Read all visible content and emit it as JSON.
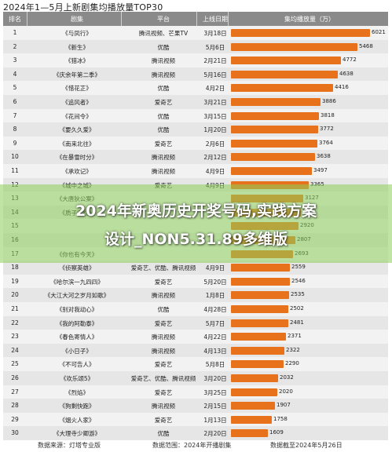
{
  "title": "2024年1—5月上新剧集均播放量TOP30",
  "header": {
    "rank": "排名",
    "name": "剧集",
    "platform": "平台",
    "date": "上线日期",
    "metric": "集均播放量（万）"
  },
  "chart_data": {
    "type": "bar",
    "orientation": "horizontal",
    "unit": "万",
    "xlim": [
      0,
      6200
    ],
    "rows": [
      {
        "rank": "1",
        "name": "《与凤行》",
        "platform": "腾讯视频、芒果TV",
        "date": "3月18日",
        "value": 6021
      },
      {
        "rank": "2",
        "name": "《新生》",
        "platform": "优酷",
        "date": "5月6日",
        "value": 5468
      },
      {
        "rank": "3",
        "name": "《猎冰》",
        "platform": "腾讯视频",
        "date": "2月21日",
        "value": 4772
      },
      {
        "rank": "4",
        "name": "《庆余年第二季》",
        "platform": "腾讯视频",
        "date": "5月16日",
        "value": 4638
      },
      {
        "rank": "5",
        "name": "《惜花芷》",
        "platform": "优酷",
        "date": "4月2日",
        "value": 4416
      },
      {
        "rank": "6",
        "name": "《追风者》",
        "platform": "爱奇艺",
        "date": "3月21日",
        "value": 3886
      },
      {
        "rank": "7",
        "name": "《花间令》",
        "platform": "优酷",
        "date": "3月15日",
        "value": 3818
      },
      {
        "rank": "8",
        "name": "《要久久爱》",
        "platform": "优酷",
        "date": "1月20日",
        "value": 3772
      },
      {
        "rank": "9",
        "name": "《南来北往》",
        "platform": "爱奇艺",
        "date": "2月6日",
        "value": 3764
      },
      {
        "rank": "10",
        "name": "《在暴雪时分》",
        "platform": "腾讯视频",
        "date": "2月12日",
        "value": 3638
      },
      {
        "rank": "11",
        "name": "《承欢记》",
        "platform": "腾讯视频",
        "date": "4月9日",
        "value": 3497
      },
      {
        "rank": "12",
        "name": "《城中之城》",
        "platform": "爱奇艺",
        "date": "4月9日",
        "value": 3365
      },
      {
        "rank": "13",
        "name": "《大唐狄公案》",
        "platform": "",
        "date": "",
        "value": 3127
      },
      {
        "rank": "14",
        "name": "《质子客栈》",
        "platform": "",
        "date": "",
        "value": 3044
      },
      {
        "rank": "15",
        "name": "",
        "platform": "",
        "date": "",
        "value": 2920
      },
      {
        "rank": "16",
        "name": "",
        "platform": "",
        "date": "",
        "value": 2807
      },
      {
        "rank": "17",
        "name": "《你也有今天》",
        "platform": "",
        "date": "",
        "value": 2693
      },
      {
        "rank": "18",
        "name": "《侦察英雄》",
        "platform": "爱奇艺、优酷、腾讯视频",
        "date": "4月9日",
        "value": 2559
      },
      {
        "rank": "19",
        "name": "《哈尔滨一九四四》",
        "platform": "爱奇艺",
        "date": "5月20日",
        "value": 2546
      },
      {
        "rank": "20",
        "name": "《大江大河之岁月如歌》",
        "platform": "腾讯视频",
        "date": "1月8日",
        "value": 2535
      },
      {
        "rank": "21",
        "name": "《别对我动心》",
        "platform": "优酷",
        "date": "4月28日",
        "value": 2502
      },
      {
        "rank": "22",
        "name": "《我的阿勒泰》",
        "platform": "爱奇艺",
        "date": "5月7日",
        "value": 2481
      },
      {
        "rank": "23",
        "name": "《春色寄情人》",
        "platform": "腾讯视频",
        "date": "4月22日",
        "value": 2371
      },
      {
        "rank": "24",
        "name": "《小日子》",
        "platform": "腾讯视频",
        "date": "4月13日",
        "value": 2322
      },
      {
        "rank": "25",
        "name": "《不可告人》",
        "platform": "爱奇艺",
        "date": "5月8日",
        "value": 2290
      },
      {
        "rank": "26",
        "name": "《欢乐颂5》",
        "platform": "爱奇艺、优酷、腾讯视频",
        "date": "3月20日",
        "value": 2032
      },
      {
        "rank": "27",
        "name": "《烈焰》",
        "platform": "爱奇艺",
        "date": "3月25日",
        "value": 2020
      },
      {
        "rank": "28",
        "name": "《狗剩快跑》",
        "platform": "腾讯视频",
        "date": "2月15日",
        "value": 1907
      },
      {
        "rank": "29",
        "name": "《烟火人家》",
        "platform": "爱奇艺",
        "date": "1月13日",
        "value": 1758
      },
      {
        "rank": "30",
        "name": "《大理寺少卿游》",
        "platform": "优酷",
        "date": "2月20日",
        "value": 1609
      }
    ]
  },
  "footer": {
    "source": "数据来源：灯塔专业版",
    "range": "数据范围：2024年开播剧集",
    "cutoff": "数据截至2024年5月26日"
  },
  "overlay": {
    "line1": "2024年新奥历史开奖号码,实践方案",
    "line2": "设计_NON5.31.89多维版"
  },
  "colors": {
    "bar": "#e8711c",
    "header_bg": "#8a8a8a",
    "overlay": "#8ccd5a"
  }
}
